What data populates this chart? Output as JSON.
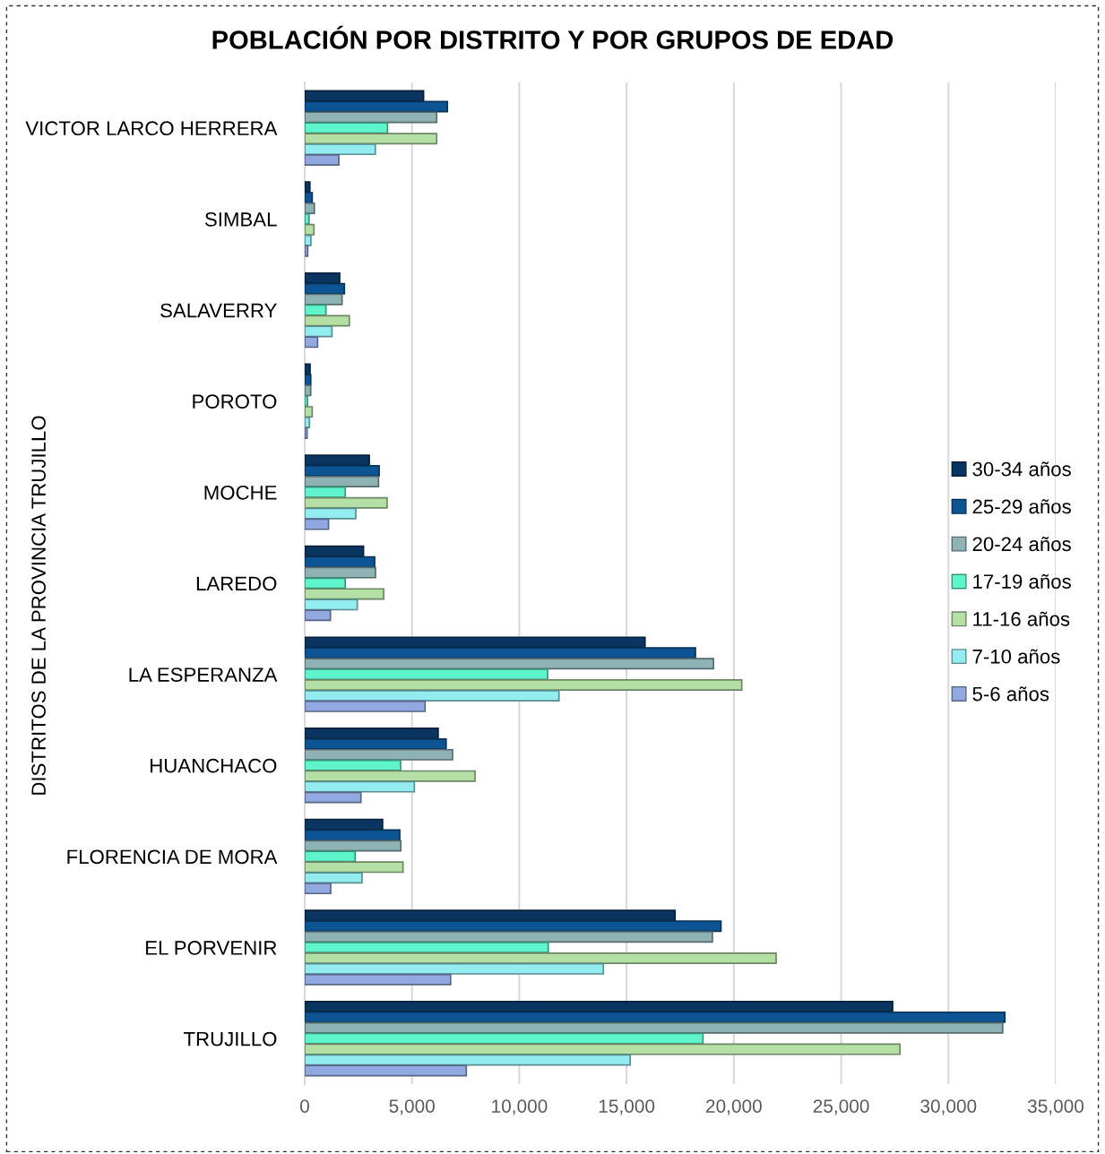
{
  "chart_data": {
    "type": "bar",
    "orientation": "horizontal",
    "title": "POBLACIÓN POR DISTRITO Y POR GRUPOS DE EDAD",
    "ylabel": "DISTRITOS DE LA PROVINCIA TRUJILLO",
    "categories": [
      "VICTOR LARCO HERRERA",
      "SIMBAL",
      "SALAVERRY",
      "POROTO",
      "MOCHE",
      "LAREDO",
      "LA ESPERANZA",
      "HUANCHACO",
      "FLORENCIA DE MORA",
      "EL PORVENIR",
      "TRUJILLO"
    ],
    "series": [
      {
        "name": "30-34 años",
        "color": "#0a3560",
        "values": [
          5540,
          240,
          1630,
          250,
          3010,
          2740,
          15860,
          6220,
          3630,
          17260,
          27400
        ]
      },
      {
        "name": "25-29 años",
        "color": "#0d5494",
        "values": [
          6650,
          350,
          1850,
          280,
          3470,
          3260,
          18210,
          6590,
          4430,
          19400,
          32630
        ]
      },
      {
        "name": "20-24 años",
        "color": "#8fb3b5",
        "values": [
          6150,
          450,
          1740,
          280,
          3440,
          3300,
          19050,
          6890,
          4480,
          19000,
          32530
        ]
      },
      {
        "name": "17-19 años",
        "color": "#5ef5cc",
        "values": [
          3860,
          200,
          990,
          130,
          1890,
          1890,
          11320,
          4470,
          2350,
          11350,
          18560
        ]
      },
      {
        "name": "11-16 años",
        "color": "#b5e0a5",
        "values": [
          6150,
          430,
          2080,
          350,
          3840,
          3680,
          20370,
          7940,
          4580,
          21970,
          27740
        ]
      },
      {
        "name": "7-10 años",
        "color": "#92ecf0",
        "values": [
          3290,
          290,
          1270,
          220,
          2380,
          2450,
          11850,
          5110,
          2670,
          13920,
          15170
        ]
      },
      {
        "name": "5-6 años",
        "color": "#91a9e0",
        "values": [
          1590,
          140,
          600,
          110,
          1110,
          1200,
          5610,
          2620,
          1210,
          6800,
          7530
        ]
      }
    ],
    "xlim": [
      0,
      35000
    ],
    "xticks": [
      {
        "value": 0,
        "label": "0"
      },
      {
        "value": 5000,
        "label": "5,000"
      },
      {
        "value": 10000,
        "label": "10,000"
      },
      {
        "value": 15000,
        "label": "15,000"
      },
      {
        "value": 20000,
        "label": "20,000"
      },
      {
        "value": 25000,
        "label": "25,000"
      },
      {
        "value": 30000,
        "label": "30,000"
      },
      {
        "value": 35000,
        "label": "35,000"
      }
    ],
    "grid": "x",
    "legend": "right"
  }
}
